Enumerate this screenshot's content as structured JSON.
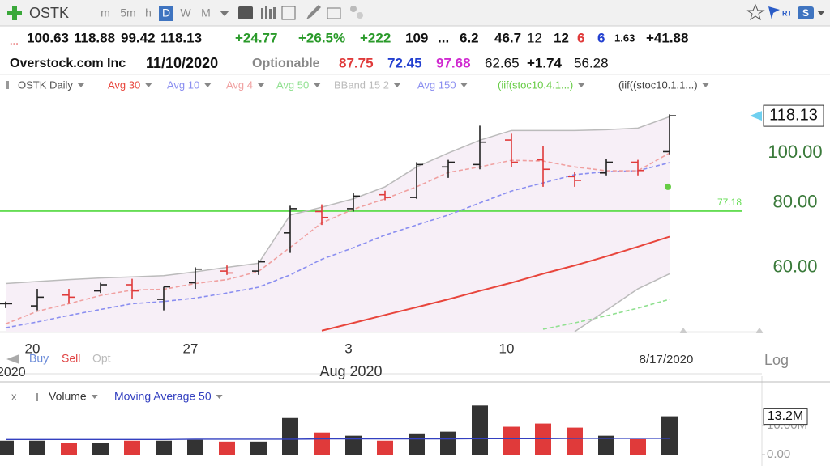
{
  "toolbar": {
    "symbol": "OSTK",
    "intervals": [
      "m",
      "5m",
      "h",
      "D",
      "W",
      "M"
    ]
  },
  "quote_row": [
    "...",
    "100.63",
    "118.88",
    "99.42",
    "118.13",
    "+24.77",
    "+26.5%",
    "+222",
    "109",
    "...",
    "6.2",
    "46.7",
    "12",
    "12",
    "6",
    "6",
    "1.63",
    "+41.88"
  ],
  "info_row": [
    "Overstock.com Inc",
    "11/10/2020",
    "Optionable",
    "87.75",
    "72.45",
    "97.68",
    "62.65",
    "+1.74",
    "56.28"
  ],
  "price_chart": {
    "type": "ohlc",
    "log_scale": true,
    "ylim": [
      45,
      127.5
    ],
    "yticks": [
      {
        "value": 100,
        "label": "100.00"
      },
      {
        "value": 80,
        "label": "80.00"
      },
      {
        "value": 60,
        "label": "60.00"
      }
    ],
    "categories": [
      null,
      "20",
      null,
      null,
      null,
      null,
      "27",
      null,
      null,
      null,
      null,
      "3",
      null,
      null,
      null,
      null,
      "10",
      null,
      null,
      null,
      null,
      null
    ],
    "partial_year": "2020",
    "month_label": "Aug 2020",
    "date_label": "8/17/2020",
    "scale_label": "Log",
    "trade_buttons": [
      "Buy",
      "Sell",
      "Opt"
    ],
    "hline": 77.18,
    "hline_color": "#66dd55",
    "last_price": 118.13,
    "up_color": "#222222",
    "down_color": "#e03a3a",
    "series": [
      {
        "name": "OSTK Daily",
        "color": "#555555",
        "kind": "ohlc",
        "open": [
          51,
          50.5,
          53,
          54,
          55.5,
          52,
          56,
          59,
          59,
          70,
          77,
          78,
          83,
          82,
          94,
          95,
          106,
          97,
          90,
          91.5,
          96,
          100.63
        ],
        "high": [
          51.5,
          54.5,
          54.5,
          56,
          57,
          55,
          60,
          60.5,
          62,
          79,
          79.5,
          83.5,
          84.5,
          96,
          97,
          113,
          109,
          103,
          92,
          97.5,
          97,
          118.88
        ],
        "low": [
          50,
          49.5,
          51,
          53.5,
          52,
          49.5,
          54.5,
          58,
          58,
          64,
          72.5,
          77,
          81,
          81.5,
          89.5,
          93,
          94,
          86,
          86,
          90.5,
          90.5,
          99.42
        ],
        "close": [
          51,
          52.5,
          52.5,
          55.5,
          54,
          55,
          59.5,
          58.5,
          61.5,
          78,
          75,
          82.5,
          82,
          95,
          96,
          105,
          96,
          93,
          88.5,
          96,
          92.5,
          118.13
        ]
      },
      {
        "name": "Avg 30",
        "color": "#e8453c",
        "kind": "line",
        "values": [
          null,
          null,
          null,
          null,
          null,
          null,
          null,
          null,
          null,
          null,
          45.2,
          46.8,
          48.5,
          50.2,
          52,
          54,
          56,
          58.3,
          60.5,
          63,
          65.8,
          68.8
        ]
      },
      {
        "name": "Avg 10",
        "color": "#8a8ef0",
        "kind": "dash",
        "values": [
          45.8,
          47,
          48.4,
          49.7,
          51,
          51.5,
          52.3,
          53.5,
          54.9,
          58,
          62.2,
          65.5,
          69.3,
          72.5,
          75.8,
          80,
          84.4,
          87.5,
          90.8,
          92,
          92.4,
          95.8
        ]
      },
      {
        "name": "Avg 4",
        "color": "#f0a0a0",
        "kind": "dash",
        "values": [
          46.6,
          49.3,
          51,
          52.9,
          54.2,
          54.4,
          55.8,
          56.8,
          58.9,
          65.6,
          73.2,
          77.8,
          81.5,
          86,
          91.7,
          94,
          96.8,
          96.5,
          94,
          92.4,
          92.4,
          100
        ]
      },
      {
        "name": "Avg 50",
        "color": "#90e090",
        "kind": "dash",
        "values": [
          null,
          null,
          null,
          null,
          null,
          null,
          null,
          null,
          null,
          null,
          null,
          null,
          null,
          null,
          null,
          null,
          null,
          45.5,
          46.8,
          48.3,
          50,
          52
        ]
      },
      {
        "name": "BBand 15 2",
        "color": "#bbbbbb",
        "kind": "band",
        "upper": [
          55.8,
          56.3,
          56.8,
          57.2,
          57.5,
          57.8,
          58.8,
          60,
          61.1,
          75.8,
          78.5,
          81.5,
          86,
          94,
          100,
          105.9,
          110.6,
          110.6,
          110.6,
          111,
          111.8,
          117.6
        ],
        "lower": [
          null,
          null,
          null,
          null,
          null,
          null,
          null,
          null,
          null,
          null,
          null,
          null,
          null,
          null,
          null,
          null,
          null,
          null,
          45,
          49.5,
          54.5,
          58.3
        ]
      },
      {
        "name": "Avg 150",
        "color": "#8a8ef0",
        "kind": "none"
      },
      {
        "name": "(iif(stoc10.4.1...)",
        "color": "#66cc44",
        "kind": "dot",
        "values": [
          null,
          null,
          null,
          null,
          null,
          null,
          null,
          null,
          null,
          null,
          null,
          null,
          null,
          null,
          null,
          null,
          null,
          null,
          null,
          null,
          null,
          86
        ]
      },
      {
        "name": "(iif((stoc10.1.1...)",
        "color": "#444444",
        "kind": "none"
      }
    ]
  },
  "volume_chart": {
    "type": "bar",
    "close_label": "x",
    "ylim": [
      0,
      22
    ],
    "yticks": [
      {
        "value": 0,
        "label": "0.00"
      },
      {
        "value": 10,
        "label": "10.00M"
      }
    ],
    "last_tag": {
      "value": 13.2,
      "label": "13.2M"
    },
    "series": [
      {
        "name": "Volume",
        "color": "#333333",
        "values": [
          4.8,
          4.8,
          4.0,
          4.0,
          4.8,
          4.8,
          5.1,
          4.5,
          4.5,
          12.6,
          7.6,
          6.5,
          4.8,
          7.3,
          7.9,
          16.9,
          9.6,
          10.7,
          9.3,
          6.5,
          5.3,
          13.2
        ]
      },
      {
        "name": "Moving Average 50",
        "color": "#3340c0",
        "values": [
          5.2,
          5.2,
          5.2,
          5.2,
          5.2,
          5.2,
          5.3,
          5.3,
          5.3,
          5.3,
          5.4,
          5.4,
          5.4,
          5.4,
          5.4,
          5.5,
          5.5,
          5.5,
          5.6,
          5.6,
          5.6,
          5.6
        ]
      }
    ]
  }
}
